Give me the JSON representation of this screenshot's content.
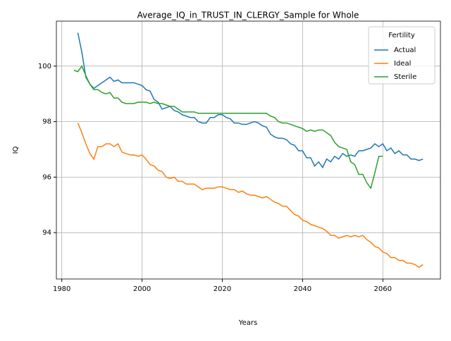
{
  "chart_data": {
    "type": "line",
    "title": "Average_IQ_in_TRUST_IN_CLERGY_Sample for Whole",
    "x_label": "Years",
    "y_label": "IQ",
    "legend_title": "Fertility",
    "legend_position": "upper right",
    "grid": true,
    "x": [
      1983,
      1984,
      1985,
      1986,
      1987,
      1988,
      1989,
      1990,
      1991,
      1992,
      1993,
      1994,
      1995,
      1996,
      1997,
      1998,
      1999,
      2000,
      2001,
      2002,
      2003,
      2004,
      2005,
      2006,
      2007,
      2008,
      2009,
      2010,
      2011,
      2012,
      2013,
      2014,
      2015,
      2016,
      2017,
      2018,
      2019,
      2020,
      2021,
      2022,
      2023,
      2024,
      2025,
      2026,
      2027,
      2028,
      2029,
      2030,
      2031,
      2032,
      2033,
      2034,
      2035,
      2036,
      2037,
      2038,
      2039,
      2040,
      2041,
      2042,
      2043,
      2044,
      2045,
      2046,
      2047,
      2048,
      2049,
      2050,
      2051,
      2052,
      2053,
      2054,
      2055,
      2056,
      2057,
      2058,
      2059,
      2060,
      2061,
      2062,
      2063,
      2064,
      2065,
      2066,
      2067,
      2068,
      2069,
      2070
    ],
    "series": [
      {
        "name": "Actual",
        "color": "#1f77b4",
        "values": [
          null,
          101.2,
          100.5,
          99.6,
          99.35,
          99.2,
          99.3,
          99.4,
          99.5,
          99.6,
          99.45,
          99.5,
          99.4,
          99.4,
          99.4,
          99.4,
          99.35,
          99.3,
          99.15,
          99.1,
          98.8,
          98.7,
          98.45,
          98.5,
          98.55,
          98.4,
          98.35,
          98.25,
          98.2,
          98.15,
          98.15,
          98.0,
          97.95,
          97.95,
          98.15,
          98.15,
          98.25,
          98.25,
          98.15,
          98.1,
          97.95,
          97.95,
          97.9,
          97.9,
          97.95,
          98.0,
          97.95,
          97.85,
          97.8,
          97.55,
          97.45,
          97.4,
          97.4,
          97.35,
          97.2,
          97.15,
          96.95,
          96.95,
          96.7,
          96.7,
          96.4,
          96.55,
          96.35,
          96.65,
          96.55,
          96.75,
          96.65,
          96.85,
          96.75,
          96.8,
          96.75,
          96.95,
          96.95,
          97.0,
          97.05,
          97.2,
          97.1,
          97.2,
          96.95,
          97.05,
          96.85,
          96.95,
          96.8,
          96.8,
          96.65,
          96.65,
          96.6,
          96.65
        ]
      },
      {
        "name": "Ideal",
        "color": "#ff7f0e",
        "values": [
          null,
          97.95,
          97.6,
          97.2,
          96.85,
          96.65,
          97.1,
          97.1,
          97.2,
          97.2,
          97.1,
          97.2,
          96.9,
          96.85,
          96.8,
          96.8,
          96.75,
          96.8,
          96.65,
          96.45,
          96.4,
          96.25,
          96.2,
          96.0,
          95.95,
          96.0,
          95.85,
          95.85,
          95.75,
          95.75,
          95.75,
          95.65,
          95.55,
          95.6,
          95.6,
          95.6,
          95.65,
          95.65,
          95.6,
          95.55,
          95.55,
          95.45,
          95.5,
          95.4,
          95.35,
          95.35,
          95.3,
          95.25,
          95.3,
          95.2,
          95.1,
          95.05,
          94.95,
          94.95,
          94.8,
          94.65,
          94.6,
          94.45,
          94.4,
          94.3,
          94.25,
          94.2,
          94.15,
          94.05,
          93.9,
          93.9,
          93.8,
          93.85,
          93.9,
          93.85,
          93.9,
          93.85,
          93.9,
          93.75,
          93.65,
          93.5,
          93.45,
          93.3,
          93.25,
          93.1,
          93.1,
          93.0,
          93.0,
          92.9,
          92.9,
          92.85,
          92.75,
          92.85
        ]
      },
      {
        "name": "Sterile",
        "color": "#2ca02c",
        "values": [
          99.85,
          99.8,
          100.0,
          99.65,
          99.35,
          99.15,
          99.15,
          99.05,
          99.0,
          99.05,
          98.85,
          98.85,
          98.7,
          98.65,
          98.65,
          98.65,
          98.7,
          98.7,
          98.7,
          98.65,
          98.7,
          98.65,
          98.65,
          98.6,
          98.55,
          98.55,
          98.45,
          98.35,
          98.35,
          98.35,
          98.35,
          98.3,
          98.3,
          98.3,
          98.3,
          98.3,
          98.3,
          98.3,
          98.3,
          98.3,
          98.3,
          98.3,
          98.3,
          98.3,
          98.3,
          98.3,
          98.3,
          98.3,
          98.3,
          98.2,
          98.15,
          98.0,
          97.95,
          97.95,
          97.9,
          97.85,
          97.8,
          97.75,
          97.65,
          97.7,
          97.65,
          97.7,
          97.7,
          97.6,
          97.5,
          97.25,
          97.1,
          97.05,
          97.0,
          96.55,
          96.45,
          96.1,
          96.1,
          95.8,
          95.6,
          96.15,
          96.75,
          96.75,
          null,
          null,
          null,
          null,
          null,
          null,
          null,
          null,
          null,
          null
        ]
      }
    ],
    "xlim": [
      1978.65,
      2074.35
    ],
    "xticks": [
      1980,
      2000,
      2020,
      2040,
      2060
    ],
    "ylim": [
      92.33,
      101.62
    ],
    "yticks": [
      94,
      96,
      98,
      100
    ]
  }
}
